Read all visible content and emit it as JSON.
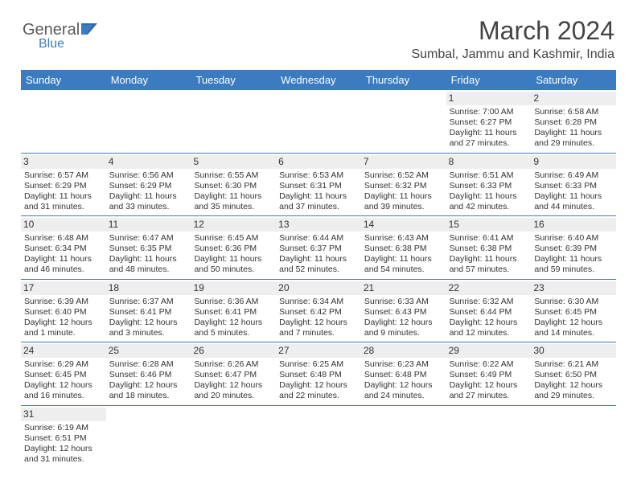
{
  "logo": {
    "text1": "General",
    "text2": "Blue"
  },
  "title": "March 2024",
  "location": "Sumbal, Jammu and Kashmir, India",
  "colors": {
    "header_bg": "#3b7bbf",
    "header_text": "#ffffff",
    "daynum_bg": "#eeeeee",
    "text": "#333333",
    "row_border": "#3b7bbf"
  },
  "dayNames": [
    "Sunday",
    "Monday",
    "Tuesday",
    "Wednesday",
    "Thursday",
    "Friday",
    "Saturday"
  ],
  "weeks": [
    [
      {
        "empty": true
      },
      {
        "empty": true
      },
      {
        "empty": true
      },
      {
        "empty": true
      },
      {
        "empty": true
      },
      {
        "n": "1",
        "sunrise": "Sunrise: 7:00 AM",
        "sunset": "Sunset: 6:27 PM",
        "daylight": "Daylight: 11 hours and 27 minutes."
      },
      {
        "n": "2",
        "sunrise": "Sunrise: 6:58 AM",
        "sunset": "Sunset: 6:28 PM",
        "daylight": "Daylight: 11 hours and 29 minutes."
      }
    ],
    [
      {
        "n": "3",
        "sunrise": "Sunrise: 6:57 AM",
        "sunset": "Sunset: 6:29 PM",
        "daylight": "Daylight: 11 hours and 31 minutes."
      },
      {
        "n": "4",
        "sunrise": "Sunrise: 6:56 AM",
        "sunset": "Sunset: 6:29 PM",
        "daylight": "Daylight: 11 hours and 33 minutes."
      },
      {
        "n": "5",
        "sunrise": "Sunrise: 6:55 AM",
        "sunset": "Sunset: 6:30 PM",
        "daylight": "Daylight: 11 hours and 35 minutes."
      },
      {
        "n": "6",
        "sunrise": "Sunrise: 6:53 AM",
        "sunset": "Sunset: 6:31 PM",
        "daylight": "Daylight: 11 hours and 37 minutes."
      },
      {
        "n": "7",
        "sunrise": "Sunrise: 6:52 AM",
        "sunset": "Sunset: 6:32 PM",
        "daylight": "Daylight: 11 hours and 39 minutes."
      },
      {
        "n": "8",
        "sunrise": "Sunrise: 6:51 AM",
        "sunset": "Sunset: 6:33 PM",
        "daylight": "Daylight: 11 hours and 42 minutes."
      },
      {
        "n": "9",
        "sunrise": "Sunrise: 6:49 AM",
        "sunset": "Sunset: 6:33 PM",
        "daylight": "Daylight: 11 hours and 44 minutes."
      }
    ],
    [
      {
        "n": "10",
        "sunrise": "Sunrise: 6:48 AM",
        "sunset": "Sunset: 6:34 PM",
        "daylight": "Daylight: 11 hours and 46 minutes."
      },
      {
        "n": "11",
        "sunrise": "Sunrise: 6:47 AM",
        "sunset": "Sunset: 6:35 PM",
        "daylight": "Daylight: 11 hours and 48 minutes."
      },
      {
        "n": "12",
        "sunrise": "Sunrise: 6:45 AM",
        "sunset": "Sunset: 6:36 PM",
        "daylight": "Daylight: 11 hours and 50 minutes."
      },
      {
        "n": "13",
        "sunrise": "Sunrise: 6:44 AM",
        "sunset": "Sunset: 6:37 PM",
        "daylight": "Daylight: 11 hours and 52 minutes."
      },
      {
        "n": "14",
        "sunrise": "Sunrise: 6:43 AM",
        "sunset": "Sunset: 6:38 PM",
        "daylight": "Daylight: 11 hours and 54 minutes."
      },
      {
        "n": "15",
        "sunrise": "Sunrise: 6:41 AM",
        "sunset": "Sunset: 6:38 PM",
        "daylight": "Daylight: 11 hours and 57 minutes."
      },
      {
        "n": "16",
        "sunrise": "Sunrise: 6:40 AM",
        "sunset": "Sunset: 6:39 PM",
        "daylight": "Daylight: 11 hours and 59 minutes."
      }
    ],
    [
      {
        "n": "17",
        "sunrise": "Sunrise: 6:39 AM",
        "sunset": "Sunset: 6:40 PM",
        "daylight": "Daylight: 12 hours and 1 minute."
      },
      {
        "n": "18",
        "sunrise": "Sunrise: 6:37 AM",
        "sunset": "Sunset: 6:41 PM",
        "daylight": "Daylight: 12 hours and 3 minutes."
      },
      {
        "n": "19",
        "sunrise": "Sunrise: 6:36 AM",
        "sunset": "Sunset: 6:41 PM",
        "daylight": "Daylight: 12 hours and 5 minutes."
      },
      {
        "n": "20",
        "sunrise": "Sunrise: 6:34 AM",
        "sunset": "Sunset: 6:42 PM",
        "daylight": "Daylight: 12 hours and 7 minutes."
      },
      {
        "n": "21",
        "sunrise": "Sunrise: 6:33 AM",
        "sunset": "Sunset: 6:43 PM",
        "daylight": "Daylight: 12 hours and 9 minutes."
      },
      {
        "n": "22",
        "sunrise": "Sunrise: 6:32 AM",
        "sunset": "Sunset: 6:44 PM",
        "daylight": "Daylight: 12 hours and 12 minutes."
      },
      {
        "n": "23",
        "sunrise": "Sunrise: 6:30 AM",
        "sunset": "Sunset: 6:45 PM",
        "daylight": "Daylight: 12 hours and 14 minutes."
      }
    ],
    [
      {
        "n": "24",
        "sunrise": "Sunrise: 6:29 AM",
        "sunset": "Sunset: 6:45 PM",
        "daylight": "Daylight: 12 hours and 16 minutes."
      },
      {
        "n": "25",
        "sunrise": "Sunrise: 6:28 AM",
        "sunset": "Sunset: 6:46 PM",
        "daylight": "Daylight: 12 hours and 18 minutes."
      },
      {
        "n": "26",
        "sunrise": "Sunrise: 6:26 AM",
        "sunset": "Sunset: 6:47 PM",
        "daylight": "Daylight: 12 hours and 20 minutes."
      },
      {
        "n": "27",
        "sunrise": "Sunrise: 6:25 AM",
        "sunset": "Sunset: 6:48 PM",
        "daylight": "Daylight: 12 hours and 22 minutes."
      },
      {
        "n": "28",
        "sunrise": "Sunrise: 6:23 AM",
        "sunset": "Sunset: 6:48 PM",
        "daylight": "Daylight: 12 hours and 24 minutes."
      },
      {
        "n": "29",
        "sunrise": "Sunrise: 6:22 AM",
        "sunset": "Sunset: 6:49 PM",
        "daylight": "Daylight: 12 hours and 27 minutes."
      },
      {
        "n": "30",
        "sunrise": "Sunrise: 6:21 AM",
        "sunset": "Sunset: 6:50 PM",
        "daylight": "Daylight: 12 hours and 29 minutes."
      }
    ],
    [
      {
        "n": "31",
        "sunrise": "Sunrise: 6:19 AM",
        "sunset": "Sunset: 6:51 PM",
        "daylight": "Daylight: 12 hours and 31 minutes."
      },
      {
        "empty": true
      },
      {
        "empty": true
      },
      {
        "empty": true
      },
      {
        "empty": true
      },
      {
        "empty": true
      },
      {
        "empty": true
      }
    ]
  ]
}
